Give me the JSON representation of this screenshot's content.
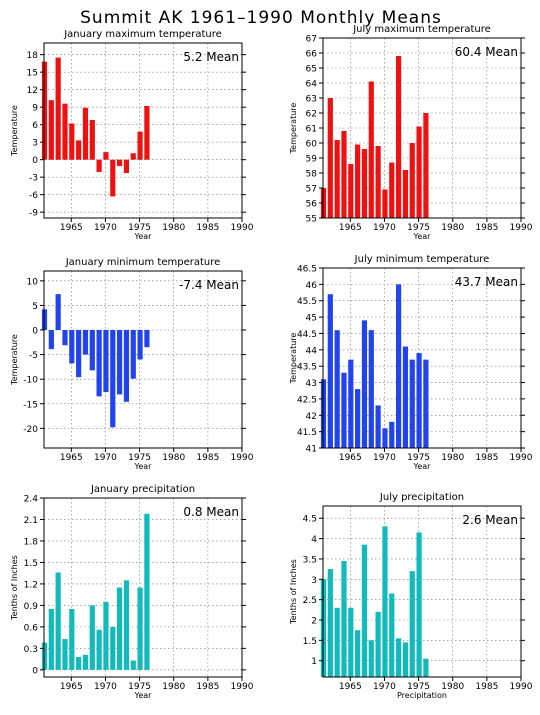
{
  "page_title": "Summit AK   1961–1990 Monthly Means",
  "chart_data": [
    {
      "type": "bar",
      "title": "January maximum temperature",
      "xlabel": "Year",
      "ylabel": "Temperature",
      "mean_label": "5.2 Mean",
      "color": "#ee1111",
      "x": [
        1961,
        1962,
        1963,
        1964,
        1965,
        1966,
        1967,
        1968,
        1969,
        1970,
        1971,
        1972,
        1973,
        1974,
        1975,
        1976
      ],
      "values": [
        16.8,
        10.2,
        17.5,
        9.6,
        6.2,
        3.3,
        8.9,
        6.8,
        -2.1,
        1.3,
        -6.3,
        -1.1,
        -2.3,
        1.1,
        4.8,
        9.2
      ],
      "xlim": [
        1961,
        1990
      ],
      "ylim": [
        -10,
        20
      ],
      "xticks": [
        1965,
        1970,
        1975,
        1980,
        1985,
        1990
      ],
      "yticks": [
        -9,
        -6,
        -3,
        0,
        3,
        6,
        9,
        12,
        15,
        18
      ],
      "xtick_labels": [
        "1965",
        "1970",
        "1975",
        "1980",
        "1985",
        "1990"
      ],
      "ytick_labels": [
        "-9",
        "-6",
        "-3",
        "0",
        "3",
        "6",
        "9",
        "12",
        "15",
        "18"
      ],
      "grid": true
    },
    {
      "type": "bar",
      "title": "July maximum temperature",
      "xlabel": "Year",
      "ylabel": "Temperature",
      "mean_label": "60.4 Mean",
      "color": "#ee1111",
      "x": [
        1961,
        1962,
        1963,
        1964,
        1965,
        1966,
        1967,
        1968,
        1969,
        1970,
        1971,
        1972,
        1973,
        1974,
        1975,
        1976
      ],
      "values": [
        57.0,
        63.0,
        60.2,
        60.8,
        58.6,
        59.9,
        59.6,
        64.1,
        59.8,
        56.9,
        58.7,
        65.8,
        58.2,
        60.0,
        61.1,
        62.0
      ],
      "xlim": [
        1961,
        1990
      ],
      "ylim": [
        55,
        67
      ],
      "xticks": [
        1965,
        1970,
        1975,
        1980,
        1985,
        1990
      ],
      "yticks": [
        55,
        56,
        57,
        58,
        59,
        60,
        61,
        62,
        63,
        64,
        65,
        66,
        67
      ],
      "xtick_labels": [
        "1965",
        "1970",
        "1975",
        "1980",
        "1985",
        "1990"
      ],
      "ytick_labels": [
        "55",
        "56",
        "57",
        "58",
        "59",
        "60",
        "61",
        "62",
        "63",
        "64",
        "65",
        "66",
        "67"
      ],
      "grid": true
    },
    {
      "type": "bar",
      "title": "January minimum temperature",
      "xlabel": "Year",
      "ylabel": "Temperature",
      "mean_label": "-7.4 Mean",
      "color": "#2244ee",
      "x": [
        1961,
        1962,
        1963,
        1964,
        1965,
        1966,
        1967,
        1968,
        1969,
        1970,
        1971,
        1972,
        1973,
        1974,
        1975,
        1976
      ],
      "values": [
        4.2,
        -3.9,
        7.3,
        -3.1,
        -6.8,
        -9.6,
        -5.0,
        -8.2,
        -13.5,
        -12.6,
        -19.8,
        -13.1,
        -14.6,
        -9.9,
        -6.0,
        -3.5
      ],
      "xlim": [
        1961,
        1990
      ],
      "ylim": [
        -24,
        12
      ],
      "xticks": [
        1965,
        1970,
        1975,
        1980,
        1985,
        1990
      ],
      "yticks": [
        -20,
        -15,
        -10,
        -5,
        0,
        5,
        10
      ],
      "xtick_labels": [
        "1965",
        "1970",
        "1975",
        "1980",
        "1985",
        "1990"
      ],
      "ytick_labels": [
        "-20",
        "-15",
        "-10",
        "-5",
        "0",
        "5",
        "10"
      ],
      "grid": true
    },
    {
      "type": "bar",
      "title": "July minimum temperature",
      "xlabel": "Year",
      "ylabel": "Temperature",
      "mean_label": "43.7 Mean",
      "color": "#2244ee",
      "x": [
        1961,
        1962,
        1963,
        1964,
        1965,
        1966,
        1967,
        1968,
        1969,
        1970,
        1971,
        1972,
        1973,
        1974,
        1975,
        1976
      ],
      "values": [
        43.1,
        45.7,
        44.6,
        43.3,
        43.7,
        42.8,
        44.9,
        44.6,
        42.3,
        41.6,
        41.8,
        46.0,
        44.1,
        43.7,
        43.9,
        43.7
      ],
      "xlim": [
        1961,
        1990
      ],
      "ylim": [
        41,
        46.5
      ],
      "xticks": [
        1965,
        1970,
        1975,
        1980,
        1985,
        1990
      ],
      "yticks": [
        41,
        41.5,
        42,
        42.5,
        43,
        43.5,
        44,
        44.5,
        45,
        45.5,
        46,
        46.5
      ],
      "xtick_labels": [
        "1965",
        "1970",
        "1975",
        "1980",
        "1985",
        "1990"
      ],
      "ytick_labels": [
        "41",
        "41.5",
        "42",
        "42.5",
        "43",
        "43.5",
        "44",
        "44.5",
        "45",
        "45.5",
        "46",
        "46.5"
      ],
      "grid": true
    },
    {
      "type": "bar",
      "title": "January precipitation",
      "xlabel": "Year",
      "ylabel": "Tenths of Inches",
      "mean_label": "0.8 Mean",
      "color": "#11bbbb",
      "x": [
        1961,
        1962,
        1963,
        1964,
        1965,
        1966,
        1967,
        1968,
        1969,
        1970,
        1971,
        1972,
        1973,
        1974,
        1975,
        1976
      ],
      "values": [
        0.38,
        0.85,
        1.36,
        0.43,
        0.85,
        0.18,
        0.21,
        0.9,
        0.56,
        0.95,
        0.6,
        1.15,
        1.25,
        0.13,
        1.15,
        2.18
      ],
      "xlim": [
        1961,
        1990
      ],
      "ylim": [
        -0.1,
        2.4
      ],
      "xticks": [
        1965,
        1970,
        1975,
        1980,
        1985,
        1990
      ],
      "yticks": [
        0,
        0.3,
        0.6,
        0.9,
        1.2,
        1.5,
        1.8,
        2.1,
        2.4
      ],
      "xtick_labels": [
        "1965",
        "1970",
        "1975",
        "1980",
        "1985",
        "1990"
      ],
      "ytick_labels": [
        "0",
        "0.3",
        "0.6",
        "0.9",
        "1.2",
        "1.5",
        "1.8",
        "2.1",
        "2.4"
      ],
      "grid": true
    },
    {
      "type": "bar",
      "title": "July precipitation",
      "xlabel": "Precipitation",
      "ylabel": "Tenths of Inches",
      "mean_label": "2.6 Mean",
      "color": "#11bbbb",
      "x": [
        1961,
        1962,
        1963,
        1964,
        1965,
        1966,
        1967,
        1968,
        1969,
        1970,
        1971,
        1972,
        1973,
        1974,
        1975,
        1976
      ],
      "values": [
        3.0,
        3.25,
        2.3,
        3.45,
        2.3,
        1.75,
        3.85,
        1.5,
        2.2,
        4.3,
        2.65,
        1.55,
        1.45,
        3.2,
        4.15,
        1.05
      ],
      "xlim": [
        1961,
        1990
      ],
      "ylim": [
        0.6,
        4.8
      ],
      "xticks": [
        1965,
        1970,
        1975,
        1980,
        1985,
        1990
      ],
      "yticks": [
        1,
        1.5,
        2,
        2.5,
        3,
        3.5,
        4,
        4.5
      ],
      "xtick_labels": [
        "1965",
        "1970",
        "1975",
        "1980",
        "1985",
        "1990"
      ],
      "ytick_labels": [
        "1",
        "1.5",
        "2",
        "2.5",
        "3",
        "3.5",
        "4",
        "4.5"
      ],
      "grid": true
    }
  ]
}
